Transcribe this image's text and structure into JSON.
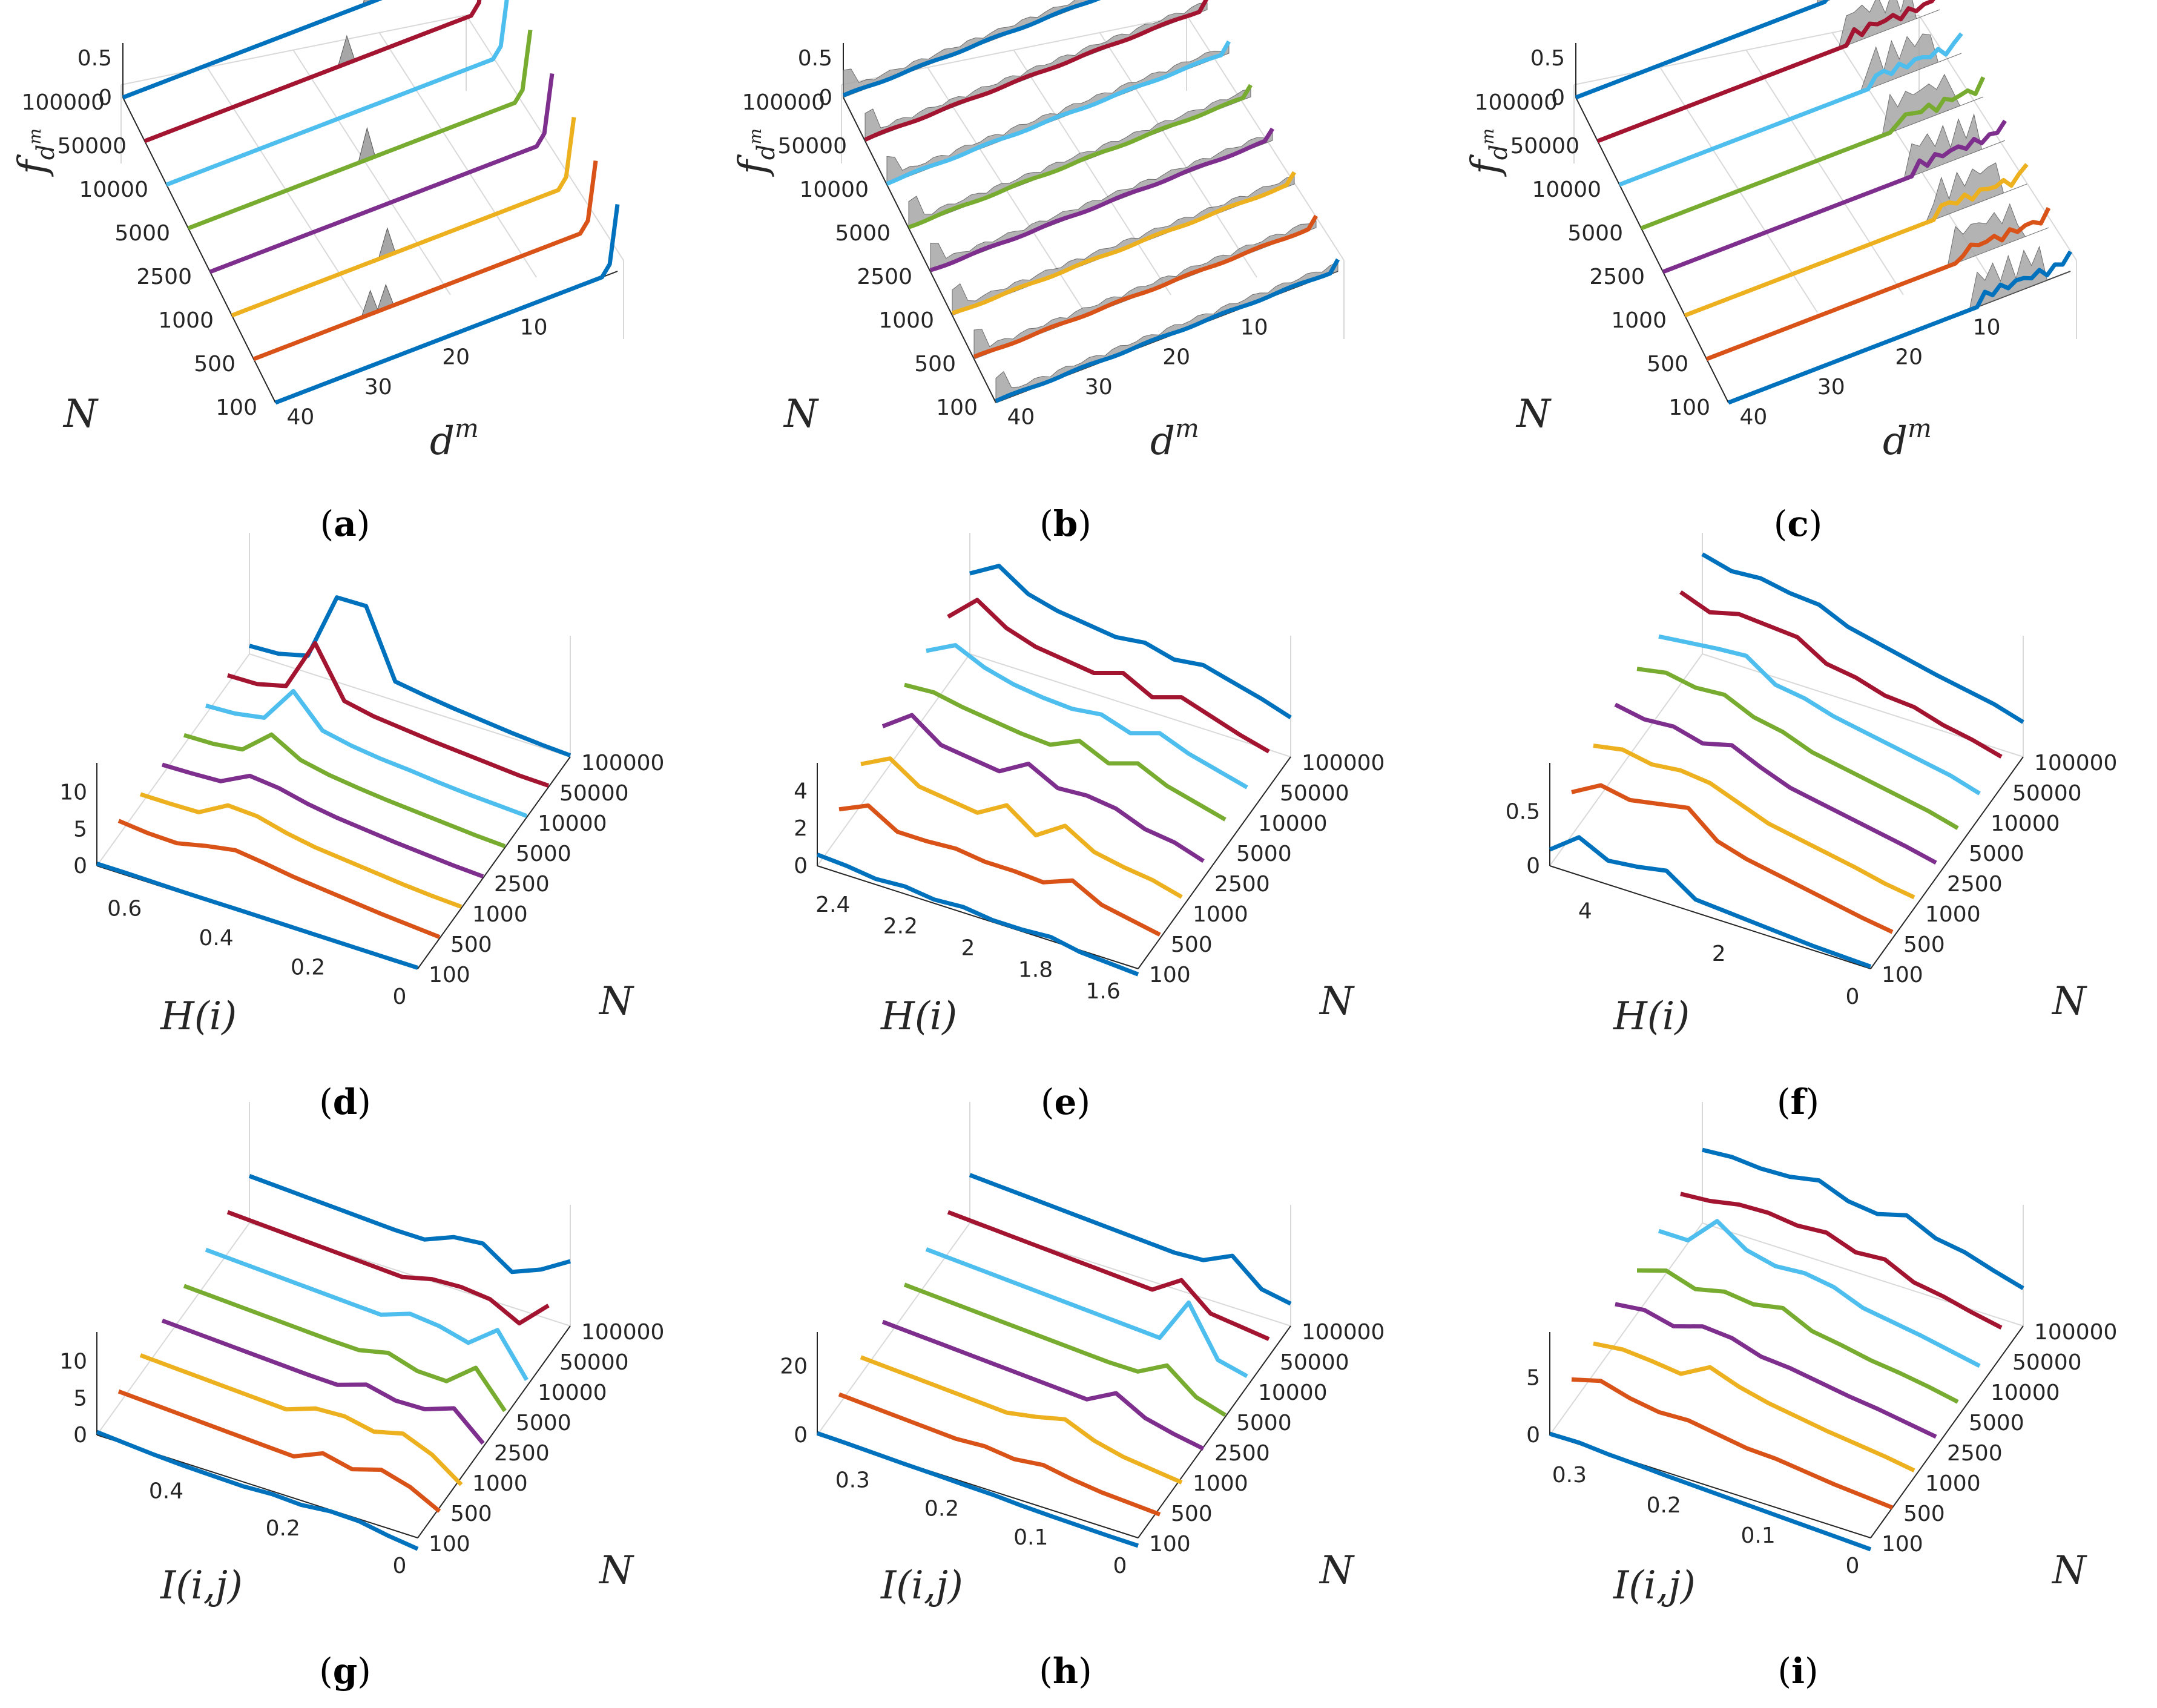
{
  "figure": {
    "n_labels": [
      "100",
      "500",
      "1000",
      "2500",
      "5000",
      "10000",
      "50000",
      "100000"
    ],
    "series_colors": [
      "#0072bd",
      "#d95319",
      "#edb120",
      "#7e2f8e",
      "#77ac30",
      "#4dbeee",
      "#a2142f",
      "#0072bd"
    ],
    "ridge_fill": "#a6a6a6"
  },
  "chart_data": [
    {
      "id": "a",
      "type": "line",
      "panel_label": "a",
      "title": "",
      "xlabel": "d",
      "xlabel_sup": "m",
      "ylabel": "N",
      "zlabel": "f",
      "zlabel_sub": "d",
      "zlabel_subsup": "m",
      "x_range": [
        1,
        44
      ],
      "x_ticks": [
        "40",
        "30",
        "20",
        "10"
      ],
      "x_tick_values": [
        40,
        30,
        20,
        10
      ],
      "z_ticks": [
        "0",
        "0.5"
      ],
      "z_tick_values": [
        0,
        0.5
      ],
      "zlim": [
        0,
        0.9
      ],
      "grey_peaks": [
        {
          "series": 7,
          "x": 12,
          "h": 0.45
        },
        {
          "series": 6,
          "x": 18,
          "h": 0.35
        },
        {
          "series": 4,
          "x": 21,
          "h": 0.4
        },
        {
          "series": 2,
          "x": 24,
          "h": 0.35
        },
        {
          "series": 1,
          "x": 27,
          "h": 0.3
        },
        {
          "series": 1,
          "x": 29,
          "h": 0.3
        }
      ],
      "series_end_peak": 0.85
    },
    {
      "id": "b",
      "type": "line",
      "panel_label": "b",
      "xlabel": "d",
      "xlabel_sup": "m",
      "ylabel": "N",
      "zlabel": "f",
      "zlabel_sub": "d",
      "zlabel_subsup": "m",
      "x_range": [
        1,
        44
      ],
      "x_ticks": [
        "40",
        "30",
        "20",
        "10"
      ],
      "x_tick_values": [
        40,
        30,
        20,
        10
      ],
      "z_ticks": [
        "0",
        "0.5"
      ],
      "z_tick_values": [
        0,
        0.5
      ],
      "zlim": [
        0,
        0.9
      ],
      "grey_band": 0.12
    },
    {
      "id": "c",
      "type": "line",
      "panel_label": "c",
      "xlabel": "d",
      "xlabel_sup": "m",
      "ylabel": "N",
      "zlabel": "f",
      "zlabel_sub": "d",
      "zlabel_subsup": "m",
      "x_range": [
        1,
        44
      ],
      "x_ticks": [
        "40",
        "30",
        "20",
        "10"
      ],
      "x_tick_values": [
        40,
        30,
        20,
        10
      ],
      "z_ticks": [
        "0",
        "0.5"
      ],
      "z_tick_values": [
        0,
        0.5
      ],
      "zlim": [
        0,
        0.9
      ],
      "grey_cluster": [
        4,
        12
      ]
    },
    {
      "id": "d",
      "type": "line",
      "panel_label": "d",
      "xlabel": "H(i)",
      "ylabel": "N",
      "x_range": [
        0.7,
        0
      ],
      "x_ticks": [
        "0.6",
        "0.4",
        "0.2",
        "0"
      ],
      "x_tick_values": [
        0.6,
        0.4,
        0.2,
        0
      ],
      "z_ticks": [
        "0",
        "5",
        "10"
      ],
      "z_tick_values": [
        0,
        5,
        10
      ],
      "zlim": [
        0,
        14
      ],
      "series": [
        {
          "name": "100",
          "values": [
            0.3,
            0.3,
            0.25,
            0.2,
            0.2,
            0.2,
            0.18,
            0.16,
            0.15,
            0.14,
            0.13,
            0.13
          ]
        },
        {
          "name": "500",
          "values": [
            2.0,
            1.6,
            1.5,
            2.4,
            3.1,
            2.6,
            2.0,
            1.6,
            1.2,
            0.8,
            0.5,
            0.2
          ]
        },
        {
          "name": "1000",
          "values": [
            1.5,
            1.5,
            1.6,
            3.8,
            3.6,
            2.6,
            1.9,
            1.5,
            1.1,
            0.7,
            0.4,
            0.2
          ]
        },
        {
          "name": "2500",
          "values": [
            1.4,
            1.5,
            1.7,
            3.7,
            3.3,
            2.4,
            1.8,
            1.4,
            1.0,
            0.7,
            0.4,
            0.2
          ]
        },
        {
          "name": "5000",
          "values": [
            1.3,
            1.4,
            1.9,
            5.2,
            3.0,
            2.2,
            1.7,
            1.3,
            1.0,
            0.7,
            0.4,
            0.2
          ]
        },
        {
          "name": "10000",
          "values": [
            1.2,
            1.4,
            2.1,
            7.0,
            2.9,
            2.1,
            1.6,
            1.3,
            0.9,
            0.6,
            0.4,
            0.2
          ]
        },
        {
          "name": "50000",
          "values": [
            1.2,
            1.3,
            2.3,
            9.4,
            2.8,
            2.0,
            1.6,
            1.2,
            0.9,
            0.6,
            0.3,
            0.2
          ]
        },
        {
          "name": "100000",
          "values": [
            1.1,
            1.3,
            2.3,
            11.5,
            11.6,
            2.6,
            2.0,
            1.5,
            1.1,
            0.7,
            0.4,
            0.2
          ]
        }
      ]
    },
    {
      "id": "e",
      "type": "line",
      "panel_label": "e",
      "xlabel": "H(i)",
      "ylabel": "N",
      "x_range": [
        2.5,
        1.55
      ],
      "x_ticks": [
        "2.4",
        "2.2",
        "2",
        "1.8",
        "1.6"
      ],
      "x_tick_values": [
        2.4,
        2.2,
        2,
        1.8,
        1.6
      ],
      "z_ticks": [
        "0",
        "2",
        "4"
      ],
      "z_tick_values": [
        0,
        2,
        4
      ],
      "zlim": [
        0,
        5.5
      ],
      "series": [
        {
          "name": "100",
          "values": [
            0.6,
            0.5,
            0.3,
            0.4,
            0.2,
            0.3,
            0.1,
            0.1,
            0.2,
            -0.1,
            -0.2,
            -0.3
          ]
        },
        {
          "name": "500",
          "values": [
            1.4,
            2.1,
            1.2,
            1.2,
            1.3,
            1.1,
            1.1,
            1.0,
            1.6,
            0.8,
            0.5,
            0.2
          ]
        },
        {
          "name": "1000",
          "values": [
            2.2,
            3.0,
            2.0,
            1.8,
            1.6,
            2.5,
            1.4,
            2.4,
            1.5,
            1.2,
            1.0,
            0.6
          ]
        },
        {
          "name": "2500",
          "values": [
            2.6,
            3.7,
            2.6,
            2.4,
            2.2,
            3.1,
            2.3,
            2.4,
            2.2,
            1.6,
            1.4,
            0.9
          ]
        },
        {
          "name": "5000",
          "values": [
            3.2,
            3.3,
            3.0,
            2.8,
            2.6,
            2.5,
            3.2,
            2.5,
            3.0,
            2.3,
            1.9,
            1.5
          ]
        },
        {
          "name": "10000",
          "values": [
            3.4,
            4.2,
            3.5,
            3.1,
            2.9,
            2.8,
            3.0,
            2.5,
            3.0,
            2.4,
            2.0,
            1.6
          ]
        },
        {
          "name": "50000",
          "values": [
            3.6,
            5.0,
            4.0,
            3.5,
            3.3,
            3.1,
            3.6,
            2.8,
            3.3,
            2.8,
            2.3,
            1.9
          ]
        },
        {
          "name": "100000",
          "values": [
            4.3,
            5.2,
            4.2,
            3.8,
            3.6,
            3.4,
            3.6,
            3.2,
            3.4,
            3.0,
            2.6,
            2.1
          ]
        }
      ]
    },
    {
      "id": "f",
      "type": "line",
      "panel_label": "f",
      "xlabel": "H(i)",
      "ylabel": "N",
      "x_range": [
        4.8,
        0
      ],
      "x_ticks": [
        "4",
        "2",
        "0"
      ],
      "x_tick_values": [
        4,
        2,
        0
      ],
      "z_ticks": [
        "0",
        "0.5"
      ],
      "z_tick_values": [
        0,
        0.5
      ],
      "zlim": [
        0,
        0.95
      ],
      "series": [
        {
          "name": "100",
          "values": [
            0.15,
            0.35,
            0.22,
            0.25,
            0.3,
            0.12,
            0.1,
            0.08,
            0.06,
            0.04,
            0.03,
            0.02
          ]
        },
        {
          "name": "500",
          "values": [
            0.4,
            0.55,
            0.5,
            0.55,
            0.6,
            0.38,
            0.3,
            0.25,
            0.2,
            0.15,
            0.1,
            0.06
          ]
        },
        {
          "name": "1000",
          "values": [
            0.55,
            0.6,
            0.55,
            0.58,
            0.55,
            0.45,
            0.35,
            0.3,
            0.25,
            0.2,
            0.14,
            0.1
          ]
        },
        {
          "name": "2500",
          "values": [
            0.65,
            0.6,
            0.62,
            0.55,
            0.62,
            0.5,
            0.4,
            0.35,
            0.3,
            0.25,
            0.2,
            0.14
          ]
        },
        {
          "name": "5000",
          "values": [
            0.7,
            0.75,
            0.7,
            0.72,
            0.6,
            0.55,
            0.45,
            0.4,
            0.35,
            0.3,
            0.25,
            0.18
          ]
        },
        {
          "name": "10000",
          "values": [
            0.72,
            0.75,
            0.78,
            0.8,
            0.62,
            0.58,
            0.5,
            0.45,
            0.4,
            0.35,
            0.3,
            0.22
          ]
        },
        {
          "name": "50000",
          "values": [
            0.85,
            0.75,
            0.82,
            0.8,
            0.78,
            0.62,
            0.58,
            0.5,
            0.48,
            0.4,
            0.35,
            0.28
          ]
        },
        {
          "name": "100000",
          "values": [
            0.92,
            0.85,
            0.87,
            0.82,
            0.8,
            0.68,
            0.62,
            0.56,
            0.5,
            0.45,
            0.4,
            0.32
          ]
        }
      ]
    },
    {
      "id": "g",
      "type": "line",
      "panel_label": "g",
      "xlabel": "I(i,j)",
      "ylabel": "N",
      "x_range": [
        0.55,
        0
      ],
      "x_ticks": [
        "0.4",
        "0.2",
        "0"
      ],
      "x_tick_values": [
        0.4,
        0.2,
        0
      ],
      "z_ticks": [
        "0",
        "5",
        "10"
      ],
      "z_tick_values": [
        0,
        5,
        10
      ],
      "zlim": [
        0,
        14
      ],
      "series": [
        {
          "name": "100",
          "values": [
            0.4,
            0.1,
            -0.2,
            -0.4,
            -0.5,
            -0.6,
            -0.4,
            -0.6,
            -0.2,
            -0.3,
            -1.0,
            -1.5
          ]
        },
        {
          "name": "500",
          "values": [
            1.8,
            1.6,
            1.4,
            1.2,
            1.0,
            0.8,
            0.6,
            2.3,
            1.4,
            2.6,
            1.5,
            -0.5
          ]
        },
        {
          "name": "1000",
          "values": [
            2.6,
            2.4,
            2.2,
            2.0,
            1.8,
            1.6,
            3.0,
            3.2,
            2.4,
            3.4,
            1.8,
            -1.0
          ]
        },
        {
          "name": "2500",
          "values": [
            3.2,
            3.0,
            2.8,
            2.6,
            2.4,
            2.2,
            2.1,
            3.4,
            2.5,
            2.6,
            4.0,
            0.5
          ]
        },
        {
          "name": "5000",
          "values": [
            3.8,
            3.6,
            3.4,
            3.2,
            3.0,
            2.8,
            2.7,
            3.6,
            2.4,
            2.3,
            5.4,
            0.8
          ]
        },
        {
          "name": "10000",
          "values": [
            4.6,
            4.4,
            4.2,
            4.0,
            3.8,
            3.6,
            3.4,
            4.8,
            4.4,
            3.4,
            6.4,
            0.9
          ]
        },
        {
          "name": "50000",
          "values": [
            5.6,
            5.4,
            5.2,
            5.0,
            4.8,
            4.6,
            4.4,
            5.4,
            5.6,
            5.2,
            3.2,
            6.9
          ]
        },
        {
          "name": "100000",
          "values": [
            6.4,
            6.2,
            6.0,
            5.8,
            5.6,
            5.4,
            5.4,
            7.0,
            7.4,
            4.8,
            6.4,
            8.8
          ]
        }
      ]
    },
    {
      "id": "h",
      "type": "line",
      "panel_label": "h",
      "xlabel": "I(i,j)",
      "ylabel": "N",
      "x_range": [
        0.36,
        0
      ],
      "x_ticks": [
        "0.3",
        "0.2",
        "0.1",
        "0"
      ],
      "x_tick_values": [
        0.3,
        0.2,
        0.1,
        0
      ],
      "z_ticks": [
        "0",
        "20"
      ],
      "z_tick_values": [
        0,
        20
      ],
      "zlim": [
        0,
        30
      ],
      "series": [
        {
          "name": "100",
          "values": [
            0.5,
            0.3,
            0.0,
            -0.3,
            -0.5,
            -0.8,
            -1.0,
            -1.5,
            -1.8,
            -2.0,
            -2.2,
            -2.3
          ]
        },
        {
          "name": "500",
          "values": [
            3.0,
            2.5,
            2.0,
            1.5,
            1.0,
            1.5,
            0.5,
            1.5,
            0.0,
            -1.0,
            -1.5,
            -2.0
          ]
        },
        {
          "name": "1000",
          "values": [
            5.0,
            4.5,
            4.0,
            3.5,
            3.0,
            2.5,
            4.0,
            6.0,
            2.5,
            0.5,
            -0.5,
            -1.5
          ]
        },
        {
          "name": "2500",
          "values": [
            6.5,
            6.0,
            5.5,
            5.0,
            4.5,
            4.0,
            3.5,
            3.0,
            7.5,
            3.0,
            1.0,
            -0.5
          ]
        },
        {
          "name": "5000",
          "values": [
            8.5,
            8.0,
            7.5,
            7.0,
            6.5,
            6.0,
            5.5,
            5.0,
            5.0,
            9.5,
            3.0,
            0.5
          ]
        },
        {
          "name": "10000",
          "values": [
            10.0,
            9.5,
            9.0,
            8.5,
            8.0,
            7.5,
            7.0,
            6.5,
            6.0,
            19.0,
            5.0,
            3.0
          ]
        },
        {
          "name": "50000",
          "values": [
            12.0,
            11.5,
            11.0,
            10.5,
            10.0,
            9.5,
            9.0,
            8.5,
            14.0,
            7.0,
            6.0,
            5.0
          ]
        },
        {
          "name": "100000",
          "values": [
            14.0,
            13.5,
            13.0,
            12.5,
            12.0,
            11.5,
            11.0,
            10.5,
            11.0,
            15.0,
            8.0,
            6.5
          ]
        }
      ]
    },
    {
      "id": "i",
      "type": "line",
      "panel_label": "i",
      "xlabel": "I(i,j)",
      "ylabel": "N",
      "x_range": [
        0.34,
        0
      ],
      "x_ticks": [
        "0.3",
        "0.2",
        "0.1",
        "0"
      ],
      "x_tick_values": [
        0.3,
        0.2,
        0.1,
        0
      ],
      "z_ticks": [
        "0",
        "5"
      ],
      "z_tick_values": [
        0,
        5
      ],
      "zlim": [
        0,
        9
      ],
      "series": [
        {
          "name": "100",
          "values": [
            0.1,
            0.15,
            -0.05,
            -0.15,
            -0.3,
            -0.4,
            -0.5,
            -0.6,
            -0.7,
            -0.8,
            -0.9,
            -1.0
          ]
        },
        {
          "name": "500",
          "values": [
            2.2,
            2.9,
            2.2,
            1.8,
            1.9,
            1.5,
            1.1,
            1.0,
            0.7,
            0.4,
            0.2,
            0.0
          ]
        },
        {
          "name": "1000",
          "values": [
            2.7,
            3.0,
            2.8,
            2.5,
            3.9,
            3.0,
            2.4,
            2.0,
            1.6,
            1.3,
            1.0,
            0.6
          ]
        },
        {
          "name": "2500",
          "values": [
            3.5,
            3.8,
            3.2,
            4.0,
            3.8,
            3.0,
            2.8,
            2.4,
            2.0,
            1.7,
            1.3,
            0.9
          ]
        },
        {
          "name": "5000",
          "values": [
            3.8,
            4.6,
            3.8,
            4.4,
            4.1,
            4.6,
            3.4,
            3.0,
            2.5,
            2.2,
            1.8,
            1.3
          ]
        },
        {
          "name": "10000",
          "values": [
            4.6,
            4.6,
            7.1,
            5.4,
            4.8,
            5.0,
            4.6,
            3.6,
            3.2,
            2.8,
            2.3,
            1.8
          ]
        },
        {
          "name": "50000",
          "values": [
            5.2,
            5.4,
            5.9,
            6.0,
            5.7,
            5.9,
            5.0,
            5.2,
            4.0,
            3.6,
            3.0,
            2.5
          ]
        },
        {
          "name": "100000",
          "values": [
            6.4,
            6.6,
            6.4,
            6.5,
            7.0,
            6.0,
            5.7,
            6.4,
            5.2,
            4.8,
            4.0,
            3.3
          ]
        }
      ]
    }
  ]
}
